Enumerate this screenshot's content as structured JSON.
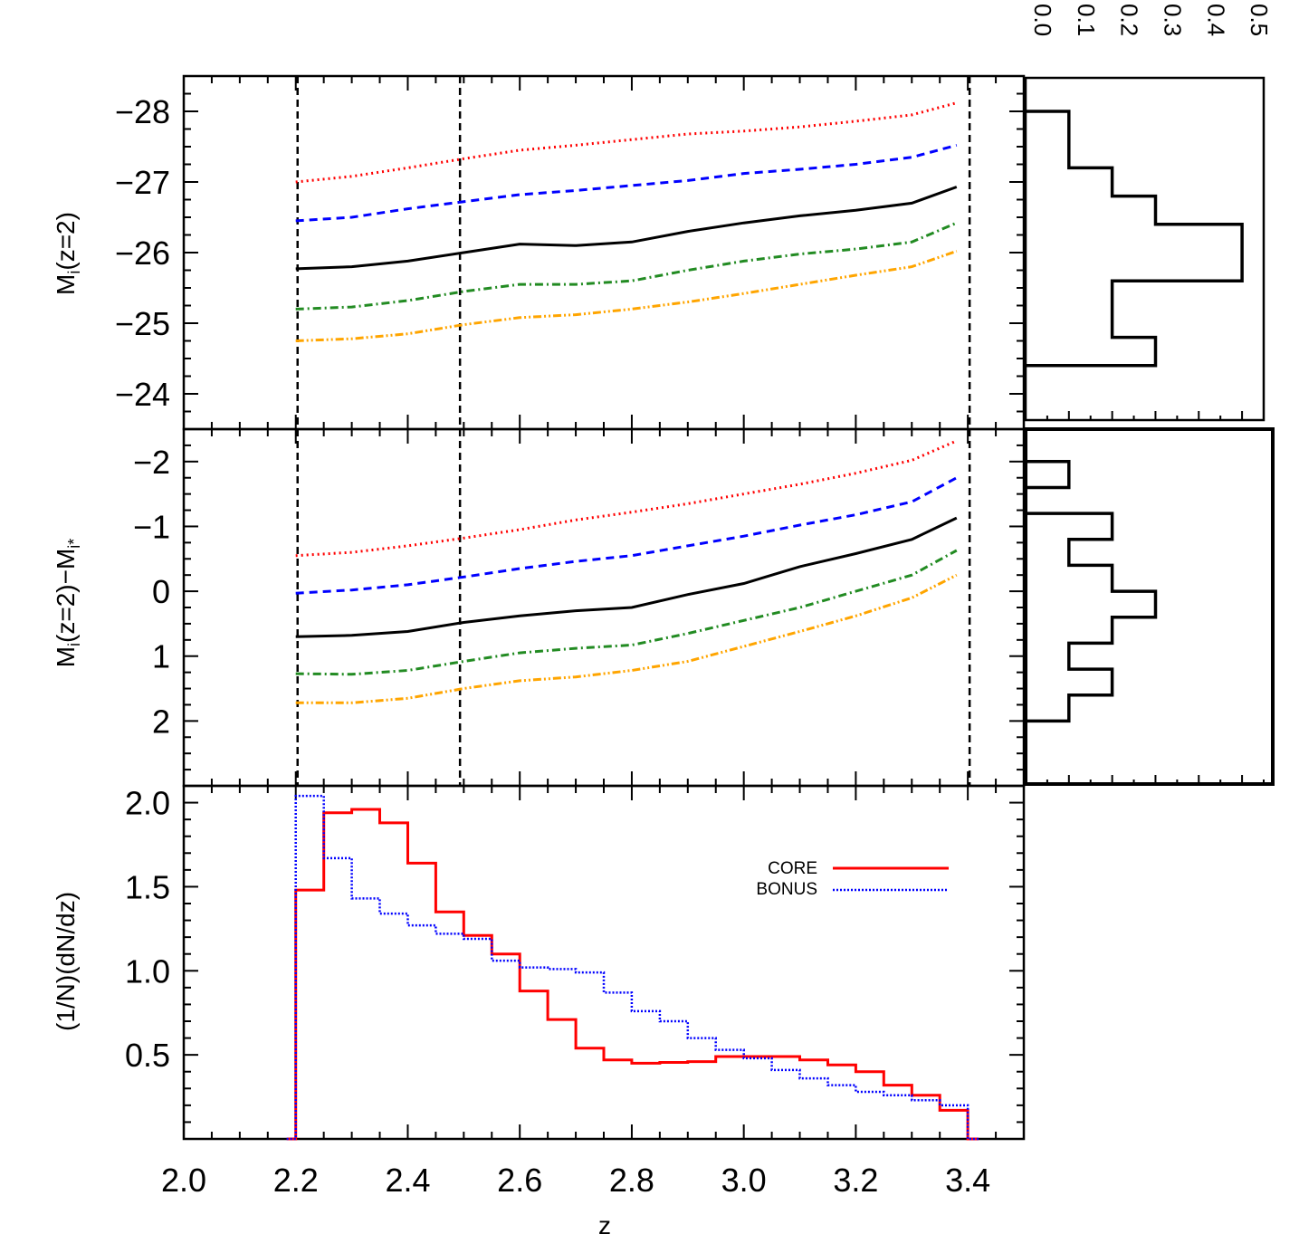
{
  "chart_data": [
    {
      "type": "line",
      "panel": "top",
      "ylabel_main": "M",
      "ylabel_sub": "i",
      "ylabel_rest": "(z=2)",
      "xlim": [
        2.0,
        3.5
      ],
      "ylim": [
        -23.5,
        -28.5
      ],
      "yticks": [
        -28,
        -27,
        -26,
        -25,
        -24
      ],
      "ytick_labels": [
        "−28",
        "−27",
        "−26",
        "−25",
        "−24"
      ],
      "x": [
        2.2,
        2.3,
        2.4,
        2.5,
        2.6,
        2.7,
        2.8,
        2.9,
        3.0,
        3.1,
        3.2,
        3.3,
        3.38
      ],
      "series": [
        {
          "name": "red-dotted",
          "color": "#ff0000",
          "dash": "2,4",
          "values": [
            -27.0,
            -27.08,
            -27.2,
            -27.33,
            -27.45,
            -27.52,
            -27.6,
            -27.68,
            -27.72,
            -27.78,
            -27.86,
            -27.95,
            -28.12
          ]
        },
        {
          "name": "blue-dashed",
          "color": "#0000ff",
          "dash": "9,6",
          "values": [
            -26.45,
            -26.5,
            -26.62,
            -26.72,
            -26.82,
            -26.88,
            -26.95,
            -27.02,
            -27.12,
            -27.18,
            -27.25,
            -27.35,
            -27.52
          ]
        },
        {
          "name": "black-solid",
          "color": "#000000",
          "dash": "",
          "values": [
            -25.77,
            -25.8,
            -25.88,
            -26.0,
            -26.12,
            -26.1,
            -26.15,
            -26.3,
            -26.42,
            -26.52,
            -26.6,
            -26.7,
            -26.93
          ]
        },
        {
          "name": "green-dashdot",
          "color": "#228b22",
          "dash": "9,4,2,4",
          "values": [
            -25.2,
            -25.23,
            -25.32,
            -25.45,
            -25.55,
            -25.55,
            -25.6,
            -25.75,
            -25.88,
            -25.98,
            -26.05,
            -26.15,
            -26.42
          ]
        },
        {
          "name": "orange-dashdotdot",
          "color": "#ffa500",
          "dash": "9,3,2,3,2,3",
          "values": [
            -24.75,
            -24.78,
            -24.85,
            -24.98,
            -25.08,
            -25.12,
            -25.2,
            -25.3,
            -25.42,
            -25.55,
            -25.68,
            -25.8,
            -26.02
          ]
        }
      ],
      "vlines": [
        2.2,
        2.49,
        3.4
      ]
    },
    {
      "type": "line",
      "panel": "middle",
      "ylabel_main": "M",
      "ylabel_sub": "i",
      "ylabel_rest": "(z=2)−M",
      "ylabel_sub2": "i*",
      "xlim": [
        2.0,
        3.5
      ],
      "ylim": [
        3.0,
        -2.5
      ],
      "yticks": [
        -2,
        -1,
        0,
        1,
        2
      ],
      "ytick_labels": [
        "−2",
        "−1",
        "0",
        "1",
        "2"
      ],
      "x": [
        2.2,
        2.3,
        2.4,
        2.5,
        2.6,
        2.7,
        2.8,
        2.9,
        3.0,
        3.1,
        3.2,
        3.3,
        3.38
      ],
      "series": [
        {
          "name": "red-dotted",
          "color": "#ff0000",
          "dash": "2,4",
          "values": [
            -0.55,
            -0.6,
            -0.7,
            -0.82,
            -0.95,
            -1.1,
            -1.22,
            -1.35,
            -1.5,
            -1.65,
            -1.82,
            -2.02,
            -2.32
          ]
        },
        {
          "name": "blue-dashed",
          "color": "#0000ff",
          "dash": "9,6",
          "values": [
            0.03,
            -0.02,
            -0.1,
            -0.22,
            -0.35,
            -0.46,
            -0.55,
            -0.7,
            -0.85,
            -1.02,
            -1.18,
            -1.38,
            -1.75
          ]
        },
        {
          "name": "black-solid",
          "color": "#000000",
          "dash": "",
          "values": [
            0.7,
            0.68,
            0.62,
            0.48,
            0.38,
            0.3,
            0.25,
            0.05,
            -0.12,
            -0.38,
            -0.58,
            -0.8,
            -1.13
          ]
        },
        {
          "name": "green-dashdot",
          "color": "#228b22",
          "dash": "9,4,2,4",
          "values": [
            1.27,
            1.28,
            1.22,
            1.08,
            0.95,
            0.88,
            0.83,
            0.65,
            0.45,
            0.25,
            0.0,
            -0.25,
            -0.63
          ]
        },
        {
          "name": "orange-dashdotdot",
          "color": "#ffa500",
          "dash": "9,3,2,3,2,3",
          "values": [
            1.72,
            1.72,
            1.65,
            1.5,
            1.38,
            1.32,
            1.22,
            1.08,
            0.85,
            0.62,
            0.38,
            0.1,
            -0.25
          ]
        }
      ],
      "vlines": [
        2.2,
        2.49,
        3.4
      ]
    },
    {
      "type": "bar",
      "panel": "bottom",
      "style": "step-histogram",
      "title": "",
      "xlabel": "z",
      "ylabel": "(1/N)(dN/dz)",
      "xlim": [
        2.0,
        3.5
      ],
      "ylim": [
        0.0,
        2.1
      ],
      "xticks": [
        2.0,
        2.2,
        2.4,
        2.6,
        2.8,
        3.0,
        3.2,
        3.4
      ],
      "xtick_labels": [
        "2.0",
        "2.2",
        "2.4",
        "2.6",
        "2.8",
        "3.0",
        "3.2",
        "3.4"
      ],
      "yticks": [
        0.5,
        1.0,
        1.5,
        2.0
      ],
      "ytick_labels": [
        "0.5",
        "1.0",
        "1.5",
        "2.0"
      ],
      "bin_edges": [
        2.2,
        2.25,
        2.3,
        2.35,
        2.4,
        2.45,
        2.5,
        2.55,
        2.6,
        2.65,
        2.7,
        2.75,
        2.8,
        2.85,
        2.9,
        2.95,
        3.0,
        3.05,
        3.1,
        3.15,
        3.2,
        3.25,
        3.3,
        3.35,
        3.4
      ],
      "series": [
        {
          "name": "CORE",
          "color": "#ff0000",
          "dash": "",
          "values": [
            1.48,
            1.94,
            1.96,
            1.88,
            1.64,
            1.35,
            1.21,
            1.1,
            0.88,
            0.71,
            0.54,
            0.47,
            0.45,
            0.455,
            0.46,
            0.49,
            0.49,
            0.49,
            0.47,
            0.44,
            0.4,
            0.32,
            0.26,
            0.17
          ]
        },
        {
          "name": "BONUS",
          "color": "#0000ff",
          "dash": "2,2",
          "values": [
            2.04,
            1.67,
            1.43,
            1.34,
            1.27,
            1.22,
            1.19,
            1.06,
            1.02,
            1.01,
            0.99,
            0.87,
            0.76,
            0.7,
            0.6,
            0.53,
            0.48,
            0.41,
            0.36,
            0.32,
            0.28,
            0.26,
            0.23,
            0.2
          ]
        }
      ],
      "legend": {
        "position": "top-right",
        "entries": [
          "CORE",
          "BONUS"
        ]
      }
    },
    {
      "type": "bar",
      "panel": "top-side-histogram",
      "orientation": "horizontal",
      "xticks": [
        0.0,
        0.1,
        0.2,
        0.3,
        0.4,
        0.5
      ],
      "xtick_labels": [
        "0.0",
        "0.1",
        "0.2",
        "0.3",
        "0.4",
        "0.5"
      ],
      "xlim": [
        0.0,
        0.55
      ],
      "bin_edges": [
        -28.0,
        -27.2,
        -26.8,
        -26.4,
        -25.6,
        -24.8,
        -24.4
      ],
      "values": [
        0.1,
        0.2,
        0.3,
        0.5,
        0.2,
        0.3
      ]
    },
    {
      "type": "bar",
      "panel": "middle-side-histogram",
      "orientation": "horizontal",
      "xlim": [
        0.0,
        0.55
      ],
      "bin_edges": [
        -2.0,
        -1.6,
        -1.2,
        -0.8,
        -0.4,
        0.0,
        0.4,
        0.8,
        1.2,
        1.6,
        2.0
      ],
      "values": [
        0.1,
        0.0,
        0.2,
        0.1,
        0.2,
        0.3,
        0.2,
        0.1,
        0.2,
        0.1
      ]
    }
  ]
}
